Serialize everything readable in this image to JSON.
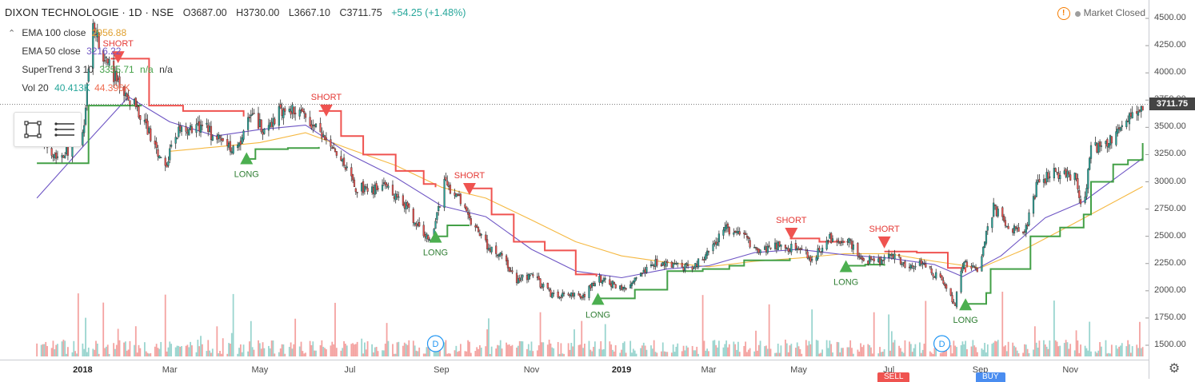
{
  "header": {
    "symbol": "DIXON TECHNOLOGIE · 1D · NSE",
    "open": "O3687.00",
    "high": "H3730.00",
    "low": "L3667.10",
    "close": "C3711.75",
    "change": "+54.25 (+1.48%)"
  },
  "legend": {
    "ema100": {
      "label": "EMA 100 close",
      "value": "2956.88",
      "color": "#f5b841"
    },
    "ema50": {
      "label": "EMA 50 close",
      "value": "3216.22",
      "color": "#6e55c4"
    },
    "supertrend": {
      "label": "SuperTrend 3 10",
      "value": "3355.71",
      "na1": "n/a",
      "na2": "n/a",
      "color": "#43a047"
    },
    "vol": {
      "label": "Vol 20",
      "value1": "40.413K",
      "value2": "44.396K",
      "color1": "#26a69a",
      "color2": "#ef5350"
    }
  },
  "status": {
    "market": "Market Closed"
  },
  "price_axis": {
    "last_price": "3711.75"
  },
  "toolbar": {
    "drawing_icon": "rectangle-select-icon",
    "menu_icon": "lines-menu-icon"
  },
  "bottom_buttons": {
    "sell": "SELL",
    "buy": "BUY"
  },
  "colors": {
    "up": "#26a69a",
    "down": "#ef5350",
    "st_up": "#43a047",
    "st_down": "#ef5350",
    "vol_up": "#9ad5cf",
    "vol_down": "#f4a3a1",
    "long_marker": "#4caf50",
    "short_marker": "#ef5350"
  },
  "chart_data": {
    "type": "candlestick",
    "ylim": [
      1400,
      4600
    ],
    "y_ticks": [
      "4500.00",
      "4250.00",
      "4000.00",
      "3750.00",
      "3500.00",
      "3250.00",
      "3000.00",
      "2750.00",
      "2500.00",
      "2250.00",
      "2000.00",
      "1750.00",
      "1500.00"
    ],
    "x_ticks": [
      {
        "label": "2018",
        "bold": true
      },
      {
        "label": "Mar"
      },
      {
        "label": "May"
      },
      {
        "label": "Jul"
      },
      {
        "label": "Sep"
      },
      {
        "label": "Nov"
      },
      {
        "label": "2019",
        "bold": true
      },
      {
        "label": "Mar"
      },
      {
        "label": "May"
      },
      {
        "label": "Jul"
      },
      {
        "label": "Sep"
      },
      {
        "label": "Nov"
      }
    ],
    "close_path": [
      [
        "2017-12-01",
        3450
      ],
      [
        "2017-12-15",
        3230
      ],
      [
        "2018-01-01",
        3400
      ],
      [
        "2018-01-08",
        4450
      ],
      [
        "2018-01-15",
        4150
      ],
      [
        "2018-01-25",
        3900
      ],
      [
        "2018-02-05",
        3700
      ],
      [
        "2018-02-14",
        3480
      ],
      [
        "2018-02-26",
        3120
      ],
      [
        "2018-03-05",
        3450
      ],
      [
        "2018-03-15",
        3500
      ],
      [
        "2018-03-26",
        3480
      ],
      [
        "2018-04-05",
        3350
      ],
      [
        "2018-04-15",
        3300
      ],
      [
        "2018-04-25",
        3630
      ],
      [
        "2018-05-05",
        3460
      ],
      [
        "2018-05-15",
        3650
      ],
      [
        "2018-05-25",
        3680
      ],
      [
        "2018-06-05",
        3550
      ],
      [
        "2018-06-15",
        3350
      ],
      [
        "2018-06-25",
        3180
      ],
      [
        "2018-07-05",
        2950
      ],
      [
        "2018-07-15",
        2920
      ],
      [
        "2018-07-25",
        2950
      ],
      [
        "2018-08-05",
        2850
      ],
      [
        "2018-08-15",
        2600
      ],
      [
        "2018-08-25",
        2460
      ],
      [
        "2018-09-03",
        2980
      ],
      [
        "2018-09-12",
        2860
      ],
      [
        "2018-09-22",
        2600
      ],
      [
        "2018-10-02",
        2420
      ],
      [
        "2018-10-12",
        2300
      ],
      [
        "2018-10-22",
        2080
      ],
      [
        "2018-11-01",
        2150
      ],
      [
        "2018-11-15",
        1960
      ],
      [
        "2018-11-25",
        1980
      ],
      [
        "2018-12-05",
        1920
      ],
      [
        "2018-12-15",
        2110
      ],
      [
        "2018-12-25",
        2070
      ],
      [
        "2019-01-05",
        2030
      ],
      [
        "2019-01-15",
        2150
      ],
      [
        "2019-01-25",
        2260
      ],
      [
        "2019-02-05",
        2250
      ],
      [
        "2019-02-18",
        2200
      ],
      [
        "2019-03-01",
        2350
      ],
      [
        "2019-03-12",
        2580
      ],
      [
        "2019-03-25",
        2480
      ],
      [
        "2019-04-05",
        2380
      ],
      [
        "2019-04-18",
        2420
      ],
      [
        "2019-04-30",
        2380
      ],
      [
        "2019-05-10",
        2300
      ],
      [
        "2019-05-22",
        2480
      ],
      [
        "2019-06-05",
        2440
      ],
      [
        "2019-06-15",
        2280
      ],
      [
        "2019-06-25",
        2270
      ],
      [
        "2019-07-05",
        2330
      ],
      [
        "2019-07-15",
        2220
      ],
      [
        "2019-07-25",
        2250
      ],
      [
        "2019-08-05",
        2100
      ],
      [
        "2019-08-15",
        1880
      ],
      [
        "2019-08-20",
        2260
      ],
      [
        "2019-08-30",
        2200
      ],
      [
        "2019-09-10",
        2760
      ],
      [
        "2019-09-20",
        2580
      ],
      [
        "2019-10-01",
        2520
      ],
      [
        "2019-10-10",
        3000
      ],
      [
        "2019-10-20",
        3080
      ],
      [
        "2019-10-30",
        3080
      ],
      [
        "2019-11-05",
        3020
      ],
      [
        "2019-11-10",
        2700
      ],
      [
        "2019-11-15",
        3350
      ],
      [
        "2019-11-22",
        3280
      ],
      [
        "2019-12-01",
        3420
      ],
      [
        "2019-12-10",
        3560
      ],
      [
        "2019-12-20",
        3711.75
      ]
    ],
    "ema100": [
      [
        "2018-03-01",
        3280
      ],
      [
        "2018-04-01",
        3320
      ],
      [
        "2018-05-01",
        3360
      ],
      [
        "2018-06-01",
        3450
      ],
      [
        "2018-07-01",
        3300
      ],
      [
        "2018-08-01",
        3150
      ],
      [
        "2018-09-01",
        2950
      ],
      [
        "2018-10-01",
        2850
      ],
      [
        "2018-11-01",
        2650
      ],
      [
        "2018-12-01",
        2450
      ],
      [
        "2019-01-01",
        2320
      ],
      [
        "2019-02-01",
        2260
      ],
      [
        "2019-03-01",
        2220
      ],
      [
        "2019-04-01",
        2270
      ],
      [
        "2019-05-01",
        2300
      ],
      [
        "2019-06-01",
        2340
      ],
      [
        "2019-07-01",
        2340
      ],
      [
        "2019-08-01",
        2270
      ],
      [
        "2019-09-01",
        2210
      ],
      [
        "2019-10-01",
        2380
      ],
      [
        "2019-11-01",
        2600
      ],
      [
        "2019-12-20",
        2956.88
      ]
    ],
    "ema50": [
      [
        "2017-12-01",
        2850
      ],
      [
        "2018-01-01",
        3320
      ],
      [
        "2018-02-01",
        3780
      ],
      [
        "2018-03-01",
        3550
      ],
      [
        "2018-04-01",
        3420
      ],
      [
        "2018-05-01",
        3480
      ],
      [
        "2018-06-01",
        3520
      ],
      [
        "2018-07-01",
        3250
      ],
      [
        "2018-08-01",
        3040
      ],
      [
        "2018-09-01",
        2780
      ],
      [
        "2018-10-01",
        2680
      ],
      [
        "2018-11-01",
        2380
      ],
      [
        "2018-12-01",
        2180
      ],
      [
        "2019-01-01",
        2120
      ],
      [
        "2019-02-01",
        2200
      ],
      [
        "2019-03-01",
        2230
      ],
      [
        "2019-04-01",
        2350
      ],
      [
        "2019-05-01",
        2380
      ],
      [
        "2019-06-01",
        2330
      ],
      [
        "2019-07-01",
        2300
      ],
      [
        "2019-08-01",
        2240
      ],
      [
        "2019-08-20",
        2130
      ],
      [
        "2019-09-15",
        2320
      ],
      [
        "2019-10-15",
        2670
      ],
      [
        "2019-11-10",
        2820
      ],
      [
        "2019-12-20",
        3216.22
      ]
    ],
    "supertrend": [
      {
        "trend": "up",
        "points": [
          [
            "2017-12-01",
            3170
          ],
          [
            "2018-01-04",
            3170
          ],
          [
            "2018-01-05",
            3700
          ],
          [
            "2018-02-10",
            3700
          ]
        ]
      },
      {
        "trend": "down",
        "points": [
          [
            "2018-01-20",
            4130
          ],
          [
            "2018-02-05",
            4130
          ],
          [
            "2018-02-15",
            3700
          ],
          [
            "2018-03-10",
            3650
          ],
          [
            "2018-04-20",
            3600
          ]
        ]
      },
      {
        "trend": "up",
        "points": [
          [
            "2018-04-20",
            3210
          ],
          [
            "2018-04-28",
            3300
          ],
          [
            "2018-05-20",
            3310
          ],
          [
            "2018-06-10",
            3320
          ]
        ]
      },
      {
        "trend": "down",
        "points": [
          [
            "2018-06-10",
            3650
          ],
          [
            "2018-06-25",
            3420
          ],
          [
            "2018-07-10",
            3250
          ],
          [
            "2018-08-01",
            3100
          ],
          [
            "2018-08-20",
            2980
          ],
          [
            "2018-08-28",
            2950
          ]
        ]
      },
      {
        "trend": "up",
        "points": [
          [
            "2018-08-28",
            2500
          ],
          [
            "2018-09-05",
            2600
          ],
          [
            "2018-09-20",
            2600
          ]
        ]
      },
      {
        "trend": "down",
        "points": [
          [
            "2018-09-20",
            2940
          ],
          [
            "2018-10-05",
            2700
          ],
          [
            "2018-10-20",
            2450
          ],
          [
            "2018-11-10",
            2370
          ],
          [
            "2018-12-01",
            2150
          ],
          [
            "2018-12-15",
            2130
          ]
        ]
      },
      {
        "trend": "up",
        "points": [
          [
            "2018-12-15",
            1930
          ],
          [
            "2019-01-10",
            2010
          ],
          [
            "2019-02-01",
            2180
          ],
          [
            "2019-02-25",
            2200
          ],
          [
            "2019-03-15",
            2230
          ],
          [
            "2019-03-25",
            2280
          ],
          [
            "2019-04-25",
            2300
          ]
        ]
      },
      {
        "trend": "down",
        "points": [
          [
            "2019-04-25",
            2480
          ],
          [
            "2019-05-15",
            2450
          ],
          [
            "2019-06-01",
            2440
          ]
        ]
      },
      {
        "trend": "up",
        "points": [
          [
            "2019-06-01",
            2230
          ],
          [
            "2019-06-15",
            2240
          ],
          [
            "2019-06-28",
            2230
          ]
        ]
      },
      {
        "trend": "down",
        "points": [
          [
            "2019-06-28",
            2360
          ],
          [
            "2019-07-20",
            2350
          ],
          [
            "2019-08-10",
            2210
          ],
          [
            "2019-08-22",
            2170
          ]
        ]
      },
      {
        "trend": "up",
        "points": [
          [
            "2019-08-22",
            1880
          ],
          [
            "2019-09-05",
            1980
          ],
          [
            "2019-09-08",
            2200
          ],
          [
            "2019-09-25",
            2200
          ],
          [
            "2019-10-05",
            2500
          ],
          [
            "2019-10-25",
            2580
          ],
          [
            "2019-11-10",
            2700
          ],
          [
            "2019-11-15",
            3000
          ],
          [
            "2019-11-30",
            3160
          ],
          [
            "2019-12-10",
            3200
          ],
          [
            "2019-12-20",
            3355.71
          ]
        ]
      }
    ],
    "signals": [
      {
        "type": "SHORT",
        "date": "2018-01-25",
        "price": 4140
      },
      {
        "type": "LONG",
        "date": "2018-04-22",
        "price": 3220
      },
      {
        "type": "SHORT",
        "date": "2018-06-15",
        "price": 3650
      },
      {
        "type": "LONG",
        "date": "2018-08-28",
        "price": 2500
      },
      {
        "type": "SHORT",
        "date": "2018-09-20",
        "price": 2930
      },
      {
        "type": "LONG",
        "date": "2018-12-16",
        "price": 1930
      },
      {
        "type": "SHORT",
        "date": "2019-04-26",
        "price": 2520
      },
      {
        "type": "LONG",
        "date": "2019-06-02",
        "price": 2230
      },
      {
        "type": "SHORT",
        "date": "2019-06-28",
        "price": 2440
      },
      {
        "type": "LONG",
        "date": "2019-08-22",
        "price": 1880
      }
    ],
    "events": [
      {
        "label": "D",
        "date": "2018-08-28"
      },
      {
        "label": "D",
        "date": "2019-08-06"
      }
    ]
  }
}
